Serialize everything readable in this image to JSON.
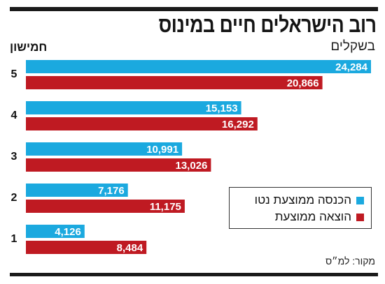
{
  "header": {
    "title": "רוב הישראלים חיים במינוס",
    "subtitle": "בשקלים",
    "group_label": "חמישון"
  },
  "source": "מקור: למ״ס",
  "colors": {
    "income": "#1ba9df",
    "expense": "#bf1a22",
    "rule": "#1a1a1a"
  },
  "legend": {
    "items": [
      {
        "label": "הכנסה ממוצעת נטו",
        "color": "#1ba9df"
      },
      {
        "label": "הוצאה ממוצעת",
        "color": "#bf1a22"
      }
    ]
  },
  "chart_data": {
    "type": "bar",
    "orientation": "horizontal",
    "title": "רוב הישראלים חיים במינוס",
    "subtitle": "בשקלים",
    "ylabel": "חמישון",
    "categories": [
      "5",
      "4",
      "3",
      "2",
      "1"
    ],
    "series": [
      {
        "name": "הכנסה ממוצעת נטו",
        "values": [
          24284,
          15153,
          10991,
          7176,
          4126
        ],
        "labels": [
          "24,284",
          "15,153",
          "10,991",
          "7,176",
          "4,126"
        ]
      },
      {
        "name": "הוצאה ממוצעת",
        "values": [
          20866,
          16292,
          13026,
          11175,
          8484
        ],
        "labels": [
          "20,866",
          "16,292",
          "13,026",
          "11,175",
          "8,484"
        ]
      }
    ],
    "xlim": [
      0,
      24284
    ],
    "grid": false,
    "legend_position": "bottom-right"
  }
}
